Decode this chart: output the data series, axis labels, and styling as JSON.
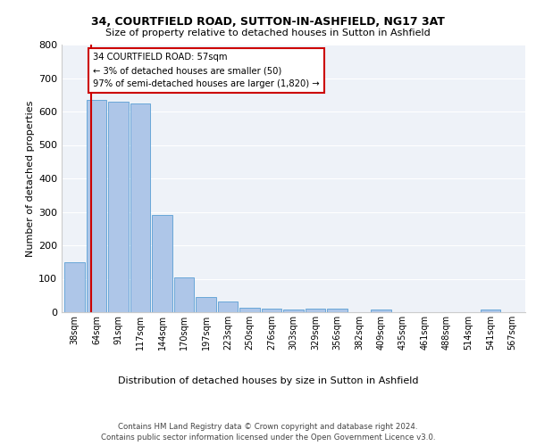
{
  "title1": "34, COURTFIELD ROAD, SUTTON-IN-ASHFIELD, NG17 3AT",
  "title2": "Size of property relative to detached houses in Sutton in Ashfield",
  "xlabel": "Distribution of detached houses by size in Sutton in Ashfield",
  "ylabel": "Number of detached properties",
  "categories": [
    "38sqm",
    "64sqm",
    "91sqm",
    "117sqm",
    "144sqm",
    "170sqm",
    "197sqm",
    "223sqm",
    "250sqm",
    "276sqm",
    "303sqm",
    "329sqm",
    "356sqm",
    "382sqm",
    "409sqm",
    "435sqm",
    "461sqm",
    "488sqm",
    "514sqm",
    "541sqm",
    "567sqm"
  ],
  "values": [
    150,
    635,
    630,
    625,
    290,
    105,
    45,
    32,
    13,
    10,
    8,
    10,
    10,
    0,
    8,
    0,
    0,
    0,
    0,
    8,
    0
  ],
  "bar_color": "#aec6e8",
  "bar_edge_color": "#5a9fd4",
  "background_color": "#eef2f8",
  "grid_color": "#ffffff",
  "annotation_text": "34 COURTFIELD ROAD: 57sqm\n← 3% of detached houses are smaller (50)\n97% of semi-detached houses are larger (1,820) →",
  "vline_x": 57,
  "vline_color": "#cc0000",
  "annotation_box_color": "#cc0000",
  "ylim": [
    0,
    800
  ],
  "yticks": [
    0,
    100,
    200,
    300,
    400,
    500,
    600,
    700,
    800
  ],
  "footer1": "Contains HM Land Registry data © Crown copyright and database right 2024.",
  "footer2": "Contains public sector information licensed under the Open Government Licence v3.0."
}
